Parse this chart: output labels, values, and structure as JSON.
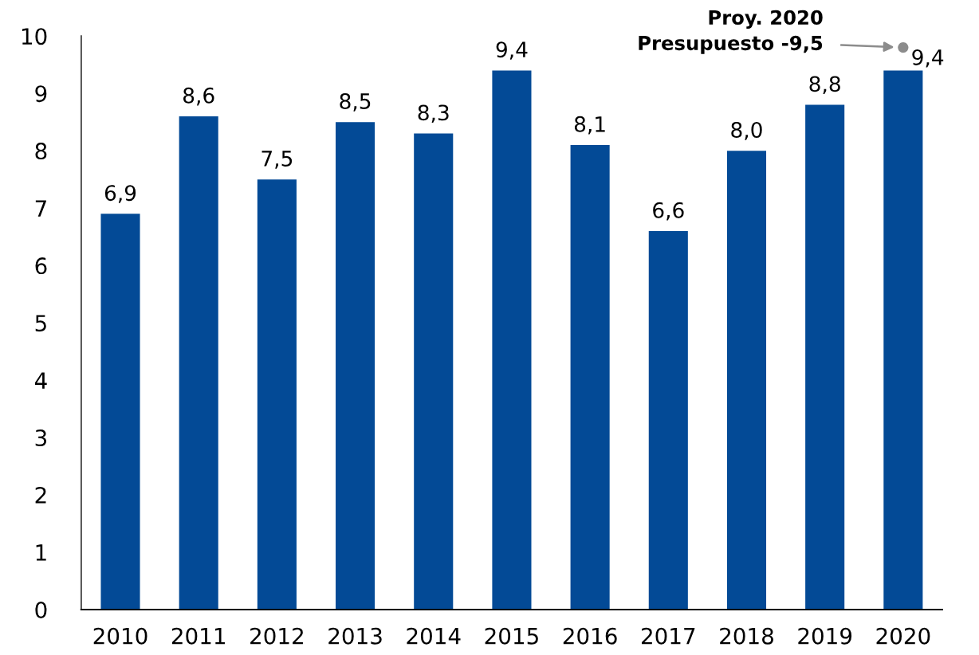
{
  "chart_data": {
    "type": "bar",
    "categories": [
      "2010",
      "2011",
      "2012",
      "2013",
      "2014",
      "2015",
      "2016",
      "2017",
      "2018",
      "2019",
      "2020"
    ],
    "series": [
      {
        "color": "#034a96",
        "values": [
          6.9,
          8.6,
          7.5,
          8.5,
          8.3,
          9.4,
          8.1,
          6.6,
          8.0,
          8.8,
          9.4
        ],
        "value_labels": [
          "6,9",
          "8,6",
          "7,5",
          "8,5",
          "8,3",
          "9,4",
          "8,1",
          "6,6",
          "8,0",
          "8,8",
          "9,4"
        ]
      },
      {
        "type": "scatter",
        "color": "#8c8c8c",
        "marker": "circle",
        "values": [
          null,
          null,
          null,
          null,
          null,
          null,
          null,
          null,
          null,
          null,
          9.8
        ]
      }
    ],
    "ylim": [
      0,
      10
    ],
    "yticks": [
      0,
      1,
      2,
      3,
      4,
      5,
      6,
      7,
      8,
      9,
      10
    ],
    "grid": false,
    "legend": false,
    "annotations": [
      "Proy. 2020\nPresupuesto -9,5"
    ]
  }
}
